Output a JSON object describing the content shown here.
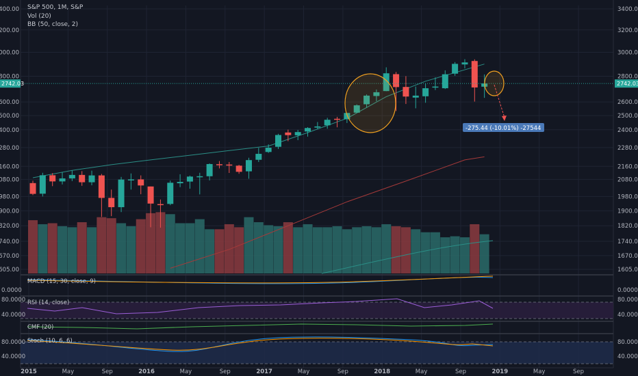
{
  "header": {
    "symbol_line": "S&P 500, 1M, S&P",
    "vol_label": "Vol (20)",
    "bb_label": "BB (50, close, 2)"
  },
  "colors": {
    "background": "#131722",
    "up": "#26a69a",
    "down": "#ef5350",
    "vol_up": "#2a6b68",
    "vol_down": "#8c3b3f",
    "bb_band": "#2b8f87",
    "bb_basis": "#a63a3a",
    "price_line": "#26a69a",
    "highlight_circle": "#f0a020",
    "measure_box": "#4a79b8",
    "grid": "#1f2433"
  },
  "chart_data": [
    {
      "type": "candlestick",
      "pane": "price",
      "title": "S&P 500, 1M, S&P",
      "y_ticks": [
        "3400.00",
        "3200.00",
        "3000.00",
        "2800.00",
        "2600.00",
        "2500.00",
        "2400.00",
        "2280.00",
        "2160.00",
        "2080.00",
        "1980.00",
        "1900.00",
        "1820.00",
        "1740.00",
        "1670.00",
        "1605.00"
      ],
      "x_ticks": [
        "2015",
        "May",
        "Sep",
        "2016",
        "May",
        "Sep",
        "2017",
        "May",
        "Sep",
        "2018",
        "May",
        "Sep",
        "2019",
        "May",
        "Sep"
      ],
      "current_price": "2742.03",
      "candles": [
        {
          "date": "2015-01",
          "open": 2058,
          "high": 2072,
          "low": 1988,
          "close": 1995
        },
        {
          "date": "2015-02",
          "open": 1996,
          "high": 2120,
          "low": 1980,
          "close": 2105
        },
        {
          "date": "2015-03",
          "open": 2105,
          "high": 2118,
          "low": 2040,
          "close": 2068
        },
        {
          "date": "2015-04",
          "open": 2068,
          "high": 2125,
          "low": 2050,
          "close": 2086
        },
        {
          "date": "2015-05",
          "open": 2086,
          "high": 2135,
          "low": 2070,
          "close": 2107
        },
        {
          "date": "2015-06",
          "open": 2107,
          "high": 2130,
          "low": 2042,
          "close": 2063
        },
        {
          "date": "2015-07",
          "open": 2063,
          "high": 2133,
          "low": 2045,
          "close": 2104
        },
        {
          "date": "2015-08",
          "open": 2104,
          "high": 2113,
          "low": 1867,
          "close": 1972
        },
        {
          "date": "2015-09",
          "open": 1972,
          "high": 2020,
          "low": 1871,
          "close": 1920
        },
        {
          "date": "2015-10",
          "open": 1920,
          "high": 2095,
          "low": 1893,
          "close": 2079
        },
        {
          "date": "2015-11",
          "open": 2079,
          "high": 2116,
          "low": 2020,
          "close": 2080
        },
        {
          "date": "2015-12",
          "open": 2080,
          "high": 2104,
          "low": 1993,
          "close": 2044
        },
        {
          "date": "2016-01",
          "open": 2038,
          "high": 2038,
          "low": 1812,
          "close": 1940
        },
        {
          "date": "2016-02",
          "open": 1937,
          "high": 1963,
          "low": 1810,
          "close": 1932
        },
        {
          "date": "2016-03",
          "open": 1938,
          "high": 2073,
          "low": 1931,
          "close": 2060
        },
        {
          "date": "2016-04",
          "open": 2057,
          "high": 2111,
          "low": 2034,
          "close": 2065
        },
        {
          "date": "2016-05",
          "open": 2067,
          "high": 2103,
          "low": 2025,
          "close": 2097
        },
        {
          "date": "2016-06",
          "open": 2093,
          "high": 2120,
          "low": 1992,
          "close": 2099
        },
        {
          "date": "2016-07",
          "open": 2099,
          "high": 2178,
          "low": 2074,
          "close": 2174
        },
        {
          "date": "2016-08",
          "open": 2173,
          "high": 2193,
          "low": 2147,
          "close": 2171
        },
        {
          "date": "2016-09",
          "open": 2171,
          "high": 2187,
          "low": 2119,
          "close": 2168
        },
        {
          "date": "2016-10",
          "open": 2164,
          "high": 2169,
          "low": 2114,
          "close": 2126
        },
        {
          "date": "2016-11",
          "open": 2129,
          "high": 2214,
          "low": 2084,
          "close": 2199
        },
        {
          "date": "2016-12",
          "open": 2201,
          "high": 2278,
          "low": 2187,
          "close": 2239
        },
        {
          "date": "2017-01",
          "open": 2251,
          "high": 2301,
          "low": 2245,
          "close": 2279
        },
        {
          "date": "2017-02",
          "open": 2285,
          "high": 2372,
          "low": 2271,
          "close": 2364
        },
        {
          "date": "2017-03",
          "open": 2381,
          "high": 2401,
          "low": 2322,
          "close": 2363
        },
        {
          "date": "2017-04",
          "open": 2362,
          "high": 2399,
          "low": 2329,
          "close": 2384
        },
        {
          "date": "2017-05",
          "open": 2388,
          "high": 2418,
          "low": 2353,
          "close": 2412
        },
        {
          "date": "2017-06",
          "open": 2415,
          "high": 2454,
          "low": 2405,
          "close": 2423
        },
        {
          "date": "2017-07",
          "open": 2431,
          "high": 2484,
          "low": 2407,
          "close": 2470
        },
        {
          "date": "2017-08",
          "open": 2477,
          "high": 2491,
          "low": 2417,
          "close": 2472
        },
        {
          "date": "2017-09",
          "open": 2474,
          "high": 2519,
          "low": 2447,
          "close": 2519
        },
        {
          "date": "2017-10",
          "open": 2521,
          "high": 2582,
          "low": 2520,
          "close": 2575
        },
        {
          "date": "2017-11",
          "open": 2583,
          "high": 2657,
          "low": 2557,
          "close": 2648
        },
        {
          "date": "2017-12",
          "open": 2645,
          "high": 2695,
          "low": 2605,
          "close": 2674
        },
        {
          "date": "2018-01",
          "open": 2683,
          "high": 2873,
          "low": 2682,
          "close": 2824
        },
        {
          "date": "2018-02",
          "open": 2817,
          "high": 2835,
          "low": 2533,
          "close": 2714
        },
        {
          "date": "2018-03",
          "open": 2715,
          "high": 2801,
          "low": 2585,
          "close": 2641
        },
        {
          "date": "2018-04",
          "open": 2633,
          "high": 2718,
          "low": 2553,
          "close": 2648
        },
        {
          "date": "2018-05",
          "open": 2643,
          "high": 2742,
          "low": 2594,
          "close": 2705
        },
        {
          "date": "2018-06",
          "open": 2718,
          "high": 2791,
          "low": 2691,
          "close": 2718
        },
        {
          "date": "2018-07",
          "open": 2705,
          "high": 2848,
          "low": 2699,
          "close": 2816
        },
        {
          "date": "2018-08",
          "open": 2821,
          "high": 2917,
          "low": 2804,
          "close": 2902
        },
        {
          "date": "2018-09",
          "open": 2897,
          "high": 2941,
          "low": 2864,
          "close": 2914
        },
        {
          "date": "2018-10",
          "open": 2926,
          "high": 2940,
          "low": 2603,
          "close": 2711
        },
        {
          "date": "2018-11",
          "open": 2717,
          "high": 2815,
          "low": 2631,
          "close": 2742
        }
      ],
      "volume": [
        {
          "date": "2015-01",
          "value": 5.3,
          "dir": "down"
        },
        {
          "date": "2015-02",
          "value": 4.9,
          "dir": "up"
        },
        {
          "date": "2015-03",
          "value": 5.0,
          "dir": "down"
        },
        {
          "date": "2015-04",
          "value": 4.7,
          "dir": "up"
        },
        {
          "date": "2015-05",
          "value": 4.6,
          "dir": "up"
        },
        {
          "date": "2015-06",
          "value": 5.1,
          "dir": "down"
        },
        {
          "date": "2015-07",
          "value": 4.6,
          "dir": "up"
        },
        {
          "date": "2015-08",
          "value": 5.6,
          "dir": "down"
        },
        {
          "date": "2015-09",
          "value": 5.5,
          "dir": "down"
        },
        {
          "date": "2015-10",
          "value": 5.0,
          "dir": "up"
        },
        {
          "date": "2015-11",
          "value": 4.7,
          "dir": "up"
        },
        {
          "date": "2015-12",
          "value": 5.4,
          "dir": "down"
        },
        {
          "date": "2016-01",
          "value": 6.0,
          "dir": "down"
        },
        {
          "date": "2016-02",
          "value": 6.1,
          "dir": "down"
        },
        {
          "date": "2016-03",
          "value": 5.9,
          "dir": "up"
        },
        {
          "date": "2016-04",
          "value": 5.0,
          "dir": "up"
        },
        {
          "date": "2016-05",
          "value": 5.0,
          "dir": "up"
        },
        {
          "date": "2016-06",
          "value": 5.4,
          "dir": "up"
        },
        {
          "date": "2016-07",
          "value": 4.4,
          "dir": "up"
        },
        {
          "date": "2016-08",
          "value": 4.4,
          "dir": "down"
        },
        {
          "date": "2016-09",
          "value": 4.9,
          "dir": "down"
        },
        {
          "date": "2016-10",
          "value": 4.6,
          "dir": "down"
        },
        {
          "date": "2016-11",
          "value": 5.6,
          "dir": "up"
        },
        {
          "date": "2016-12",
          "value": 5.1,
          "dir": "up"
        },
        {
          "date": "2017-01",
          "value": 4.8,
          "dir": "up"
        },
        {
          "date": "2017-02",
          "value": 4.7,
          "dir": "up"
        },
        {
          "date": "2017-03",
          "value": 5.1,
          "dir": "down"
        },
        {
          "date": "2017-04",
          "value": 4.6,
          "dir": "up"
        },
        {
          "date": "2017-05",
          "value": 4.9,
          "dir": "up"
        },
        {
          "date": "2017-06",
          "value": 4.6,
          "dir": "up"
        },
        {
          "date": "2017-07",
          "value": 4.6,
          "dir": "up"
        },
        {
          "date": "2017-08",
          "value": 4.7,
          "dir": "up"
        },
        {
          "date": "2017-09",
          "value": 4.4,
          "dir": "up"
        },
        {
          "date": "2017-10",
          "value": 4.6,
          "dir": "up"
        },
        {
          "date": "2017-11",
          "value": 4.7,
          "dir": "up"
        },
        {
          "date": "2017-12",
          "value": 4.6,
          "dir": "up"
        },
        {
          "date": "2018-01",
          "value": 4.9,
          "dir": "up"
        },
        {
          "date": "2018-02",
          "value": 4.7,
          "dir": "down"
        },
        {
          "date": "2018-03",
          "value": 4.6,
          "dir": "down"
        },
        {
          "date": "2018-04",
          "value": 4.4,
          "dir": "up"
        },
        {
          "date": "2018-05",
          "value": 4.1,
          "dir": "up"
        },
        {
          "date": "2018-06",
          "value": 4.1,
          "dir": "up"
        },
        {
          "date": "2018-07",
          "value": 3.6,
          "dir": "up"
        },
        {
          "date": "2018-08",
          "value": 3.7,
          "dir": "up"
        },
        {
          "date": "2018-09",
          "value": 3.6,
          "dir": "up"
        },
        {
          "date": "2018-10",
          "value": 4.9,
          "dir": "down"
        },
        {
          "date": "2018-11",
          "value": 3.9,
          "dir": "up"
        }
      ],
      "annotations": {
        "measure_label": "-275.44 (-10.01%) -27544"
      }
    },
    {
      "type": "line",
      "pane": "macd",
      "title": "MACD (15, 30, close, 9)",
      "y_ticks": [
        "0.0000"
      ]
    },
    {
      "type": "line",
      "pane": "rsi",
      "title": "RSI (14, close)",
      "y_ticks": [
        "80.0000",
        "40.0000"
      ]
    },
    {
      "type": "line",
      "pane": "cmf",
      "title": "CMF (20)",
      "y_ticks": []
    },
    {
      "type": "line",
      "pane": "stoch",
      "title": "Stoch (10, 6, 6)",
      "y_ticks": [
        "80.0000",
        "40.0000"
      ]
    }
  ]
}
